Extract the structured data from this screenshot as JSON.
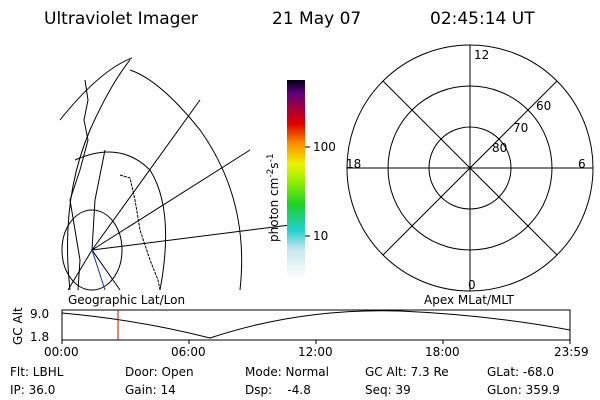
{
  "header": {
    "title": "Ultraviolet Imager",
    "date": "21 May 07",
    "time": "02:45:14 UT"
  },
  "geo_panel": {
    "label": "Geographic Lat/Lon"
  },
  "polar_panel": {
    "label": "Apex MLat/MLT",
    "mlt_labels": [
      "12",
      "18",
      "6",
      "0"
    ],
    "mlat_labels": [
      "60",
      "70",
      "80"
    ]
  },
  "colorbar": {
    "unit": "photon cm",
    "exp1": "-2",
    "unit2": "s",
    "exp2": "-1",
    "ticks": [
      "100",
      "10"
    ]
  },
  "timeline": {
    "ylabel": "GC Alt",
    "yticks": [
      "9.0",
      "1.8"
    ],
    "xticks": [
      "00:00",
      "06:00",
      "12:00",
      "18:00",
      "23:59"
    ]
  },
  "status": {
    "row1": [
      "Flt: LBHL",
      "Door: Open",
      "Mode: Normal",
      "GC Alt: 7.3 Re",
      "GLat: -68.0"
    ],
    "row2": [
      "IP: 36.0",
      "Gain: 14",
      "Dsp:    -4.8",
      "Seq: 39",
      "GLon: 359.9"
    ]
  }
}
